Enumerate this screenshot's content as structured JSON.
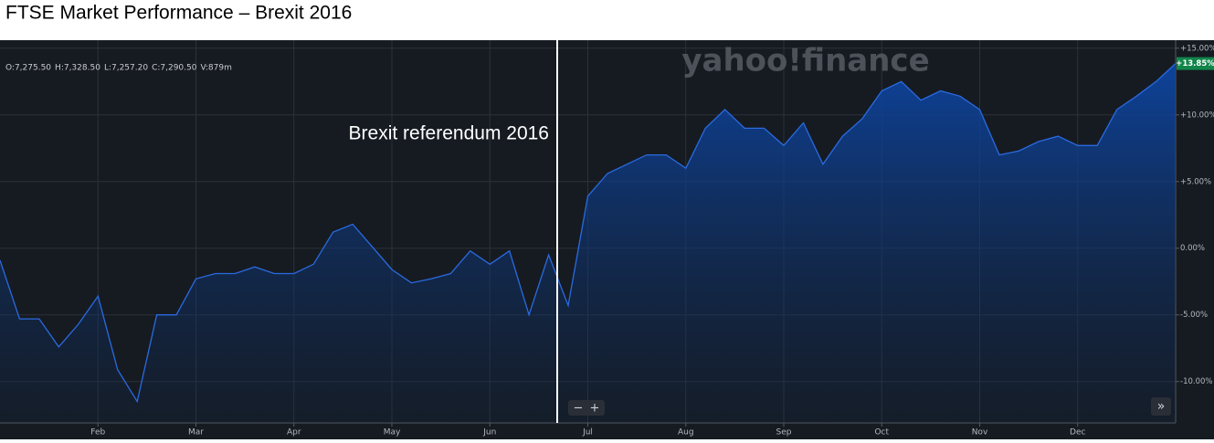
{
  "title": "FTSE Market Performance – Brexit 2016",
  "ohlc": [
    "O:7,275.50",
    "H:7,328.50",
    "L:7,257.20",
    "C:7,290.50",
    "V:879m"
  ],
  "watermark": "yahoo!finance",
  "annotation": "Brexit referendum 2016",
  "controls": [
    "−",
    "+",
    "»"
  ],
  "chart_data": {
    "type": "area",
    "categories": [
      null,
      null,
      null,
      null,
      null,
      "Feb",
      null,
      null,
      null,
      null,
      "Mar",
      null,
      null,
      null,
      null,
      "Apr",
      null,
      null,
      null,
      null,
      "May",
      null,
      null,
      null,
      null,
      "Jun",
      null,
      null,
      null,
      null,
      "Jul",
      null,
      null,
      null,
      null,
      "Aug",
      null,
      null,
      null,
      null,
      "Sep",
      null,
      null,
      null,
      null,
      "Oct",
      null,
      null,
      null,
      null,
      "Nov",
      null,
      null,
      null,
      null,
      "Dec",
      null,
      null,
      null,
      null,
      null
    ],
    "series": [
      {
        "color": "#2a6ae0",
        "values": [
          -0.9,
          -5.3,
          -5.3,
          -7.4,
          -5.7,
          -3.6,
          -9.1,
          -11.5,
          -5.0,
          -5.0,
          -2.3,
          -1.9,
          -1.9,
          -1.4,
          -1.9,
          -1.9,
          -1.2,
          1.2,
          1.8,
          0.1,
          -1.6,
          -2.6,
          -2.3,
          -1.9,
          -0.2,
          -1.2,
          -0.2,
          -5.0,
          -0.5,
          -4.3,
          3.9,
          5.6,
          6.3,
          7.0,
          7.0,
          6.0,
          9.0,
          10.4,
          9.0,
          9.0,
          7.7,
          9.4,
          6.3,
          8.4,
          9.7,
          11.8,
          12.5,
          11.1,
          11.8,
          11.4,
          10.4,
          7.0,
          7.3,
          8.0,
          8.4,
          7.7,
          7.7,
          10.4,
          11.4,
          12.5,
          13.85
        ],
        "value_labels": [
          null,
          null,
          null,
          null,
          null,
          null,
          null,
          null,
          null,
          null,
          null,
          null,
          null,
          null,
          null,
          null,
          null,
          null,
          null,
          null,
          null,
          null,
          null,
          null,
          null,
          null,
          null,
          null,
          null,
          null,
          null,
          null,
          null,
          null,
          null,
          null,
          null,
          null,
          null,
          null,
          null,
          null,
          null,
          null,
          null,
          null,
          null,
          null,
          null,
          null,
          null,
          null,
          null,
          null,
          null,
          null,
          null,
          null,
          null,
          null,
          "+13.85%"
        ]
      }
    ],
    "ylim": [
      -13.1,
      15.6
    ],
    "yticks": [
      {
        "value": -10,
        "label": "-10.00%"
      },
      {
        "value": -5,
        "label": "-5.00%"
      },
      {
        "value": 0,
        "label": "0.00%"
      },
      {
        "value": 5,
        "label": "+5.00%"
      },
      {
        "value": 10,
        "label": "+10.00%"
      },
      {
        "value": 15,
        "label": "+15.00%"
      }
    ],
    "grid": true
  }
}
